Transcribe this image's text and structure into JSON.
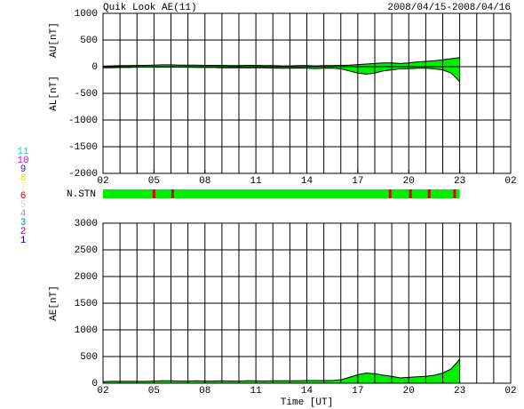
{
  "title": "Quik Look AE(11)",
  "date_range": "2008/04/15-2008/04/16",
  "chart_data": [
    {
      "type": "area",
      "y_label_upper": "AU[nT]",
      "y_label_lower": "AL[nT]",
      "x": [
        0,
        0.5,
        1,
        1.5,
        2,
        2.5,
        3,
        3.5,
        4,
        4.5,
        5,
        5.5,
        6,
        6.5,
        7,
        7.5,
        8,
        8.5,
        9,
        9.5,
        10,
        10.5,
        11,
        11.5,
        12,
        12.5,
        13,
        13.5,
        14,
        14.5,
        15,
        15.5,
        16,
        16.5,
        17,
        17.5,
        18,
        18.5,
        19,
        19.5,
        20,
        20.5,
        21
      ],
      "series": [
        {
          "name": "AU",
          "color": "#00ee00",
          "values": [
            10,
            15,
            20,
            20,
            25,
            25,
            30,
            35,
            35,
            30,
            30,
            30,
            25,
            25,
            25,
            20,
            20,
            25,
            25,
            20,
            20,
            15,
            15,
            20,
            20,
            15,
            20,
            20,
            25,
            30,
            40,
            50,
            60,
            70,
            70,
            60,
            70,
            90,
            100,
            110,
            130,
            150,
            170
          ]
        },
        {
          "name": "AL",
          "color": "#00ee00",
          "values": [
            -20,
            -20,
            -15,
            -15,
            -10,
            -10,
            -10,
            -10,
            -10,
            -10,
            -10,
            -15,
            -15,
            -15,
            -20,
            -20,
            -20,
            -20,
            -20,
            -20,
            -25,
            -30,
            -30,
            -25,
            -30,
            -35,
            -30,
            -30,
            -40,
            -80,
            -120,
            -140,
            -120,
            -80,
            -60,
            -40,
            -40,
            -30,
            -30,
            -40,
            -60,
            -120,
            -280
          ]
        }
      ],
      "xlim": [
        0,
        24
      ],
      "xticks": [
        {
          "value": 0,
          "label": "02"
        },
        {
          "value": 3,
          "label": "05"
        },
        {
          "value": 6,
          "label": "08"
        },
        {
          "value": 9,
          "label": "11"
        },
        {
          "value": 12,
          "label": "14"
        },
        {
          "value": 15,
          "label": "17"
        },
        {
          "value": 18,
          "label": "20"
        },
        {
          "value": 21,
          "label": "23"
        },
        {
          "value": 24,
          "label": "02"
        }
      ],
      "x_minor_grid": 1,
      "ylim": [
        -2000,
        1000
      ],
      "yticks": [
        -2000,
        -1500,
        -1000,
        -500,
        0,
        500,
        1000
      ],
      "grid": true
    },
    {
      "type": "area",
      "y_label": "AE[nT]",
      "x_label": "Time [UT]",
      "x": [
        0,
        0.5,
        1,
        1.5,
        2,
        2.5,
        3,
        3.5,
        4,
        4.5,
        5,
        5.5,
        6,
        6.5,
        7,
        7.5,
        8,
        8.5,
        9,
        9.5,
        10,
        10.5,
        11,
        11.5,
        12,
        12.5,
        13,
        13.5,
        14,
        14.5,
        15,
        15.5,
        16,
        16.5,
        17,
        17.5,
        18,
        18.5,
        19,
        19.5,
        20,
        20.5,
        21
      ],
      "series": [
        {
          "name": "AE",
          "color": "#00ee00",
          "values": [
            30,
            35,
            35,
            35,
            35,
            35,
            40,
            45,
            45,
            40,
            40,
            45,
            40,
            40,
            45,
            40,
            40,
            45,
            45,
            40,
            45,
            45,
            45,
            45,
            50,
            50,
            50,
            50,
            65,
            110,
            160,
            190,
            180,
            150,
            130,
            100,
            110,
            120,
            130,
            150,
            190,
            270,
            450
          ]
        }
      ],
      "xlim": [
        0,
        24
      ],
      "xticks": [
        {
          "value": 0,
          "label": "02"
        },
        {
          "value": 3,
          "label": "05"
        },
        {
          "value": 6,
          "label": "08"
        },
        {
          "value": 9,
          "label": "11"
        },
        {
          "value": 12,
          "label": "14"
        },
        {
          "value": 15,
          "label": "17"
        },
        {
          "value": 18,
          "label": "20"
        },
        {
          "value": 21,
          "label": "23"
        },
        {
          "value": 24,
          "label": "02"
        }
      ],
      "x_minor_grid": 1,
      "ylim": [
        0,
        3000
      ],
      "yticks": [
        0,
        500,
        1000,
        1500,
        2000,
        2500,
        3000
      ],
      "grid": true
    }
  ],
  "station_bar": {
    "label": "N.STN",
    "color": "#00ee00",
    "xlim": [
      0,
      21
    ],
    "marks": {
      "color": "#dd0000",
      "x": [
        3,
        4.1,
        16.9,
        18.1,
        19.2,
        20.7
      ]
    }
  },
  "legend": [
    {
      "label": "11",
      "color": "#00dddd"
    },
    {
      "label": "10",
      "color": "#dd00dd"
    },
    {
      "label": "9",
      "color": "#2222cc"
    },
    {
      "label": "8",
      "color": "#dddd00"
    },
    {
      "label": "7",
      "color": "#eeee88"
    },
    {
      "label": "6",
      "color": "#dd0000"
    },
    {
      "label": "5",
      "color": "#cccccc"
    },
    {
      "label": "4",
      "color": "#999999"
    },
    {
      "label": "3",
      "color": "#008888"
    },
    {
      "label": "2",
      "color": "#880088"
    },
    {
      "label": "1",
      "color": "#0000aa"
    }
  ]
}
